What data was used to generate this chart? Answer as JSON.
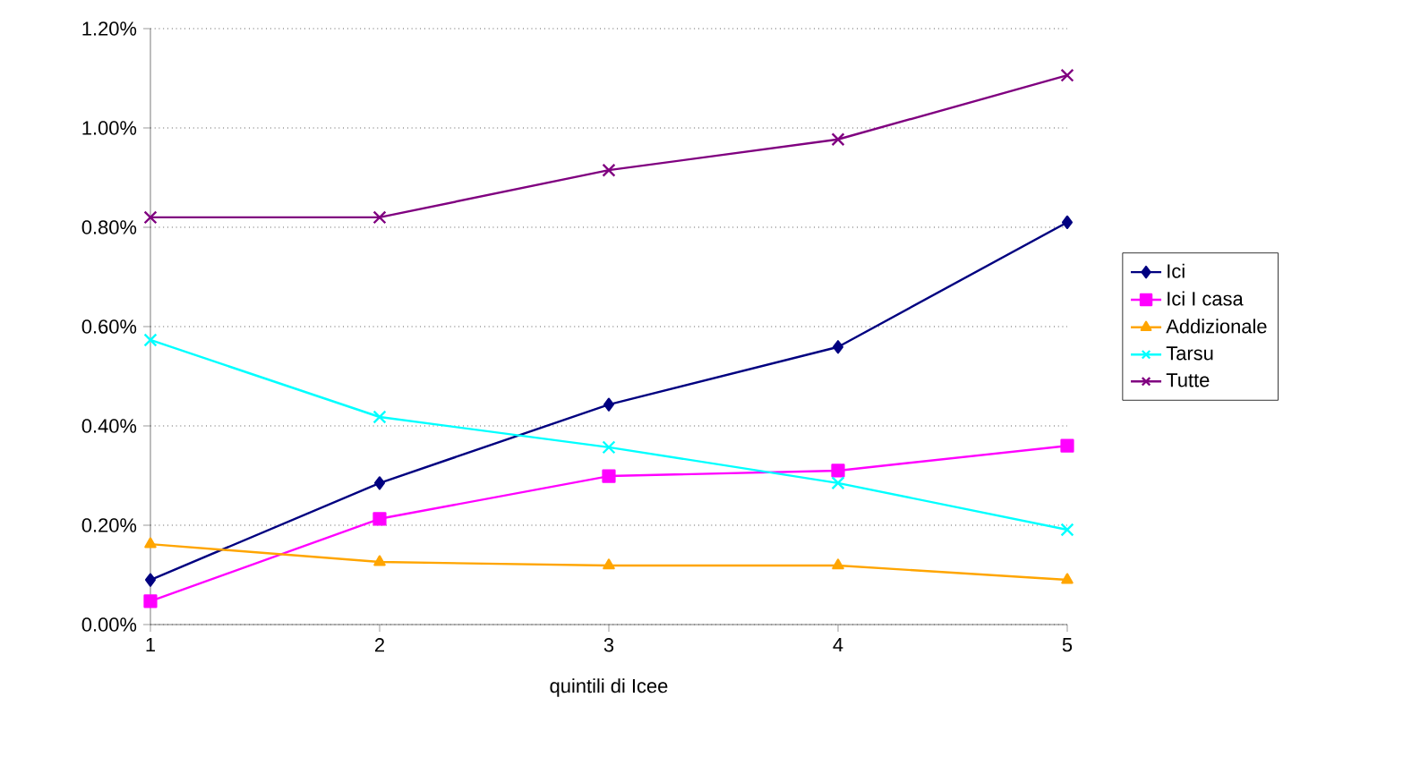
{
  "chart_data": {
    "type": "line",
    "xlabel": "quintili di Icee",
    "x": [
      1,
      2,
      3,
      4,
      5
    ],
    "xlim": [
      1,
      5
    ],
    "xticks": [
      1,
      2,
      3,
      4,
      5
    ],
    "ylim": [
      0,
      1.2
    ],
    "yticks": [
      {
        "value": 0,
        "label": "0.00%"
      },
      {
        "value": 0.2,
        "label": "0.20%"
      },
      {
        "value": 0.4,
        "label": "0.40%"
      },
      {
        "value": 0.6,
        "label": "0.60%"
      },
      {
        "value": 0.8,
        "label": "0.80%"
      },
      {
        "value": 1.0,
        "label": "1.00%"
      },
      {
        "value": 1.2,
        "label": "1.20%"
      }
    ],
    "grid": "y",
    "legend": "right",
    "line_style": "solid",
    "series": [
      {
        "name": "Ici",
        "color": "#000080",
        "marker": "diamond",
        "values": [
          0.09,
          0.285,
          0.443,
          0.559,
          0.81
        ]
      },
      {
        "name": "Ici I casa",
        "color": "#ff00ff",
        "marker": "square",
        "values": [
          0.047,
          0.213,
          0.299,
          0.31,
          0.36
        ]
      },
      {
        "name": "Addizionale",
        "color": "#ffa500",
        "marker": "triangle",
        "values": [
          0.162,
          0.126,
          0.119,
          0.119,
          0.09
        ]
      },
      {
        "name": "Tarsu",
        "color": "#00ffff",
        "marker": "cross",
        "values": [
          0.573,
          0.418,
          0.357,
          0.285,
          0.191
        ]
      },
      {
        "name": "Tutte",
        "color": "#800080",
        "marker": "cross",
        "values": [
          0.82,
          0.82,
          0.915,
          0.977,
          1.106
        ]
      }
    ]
  }
}
